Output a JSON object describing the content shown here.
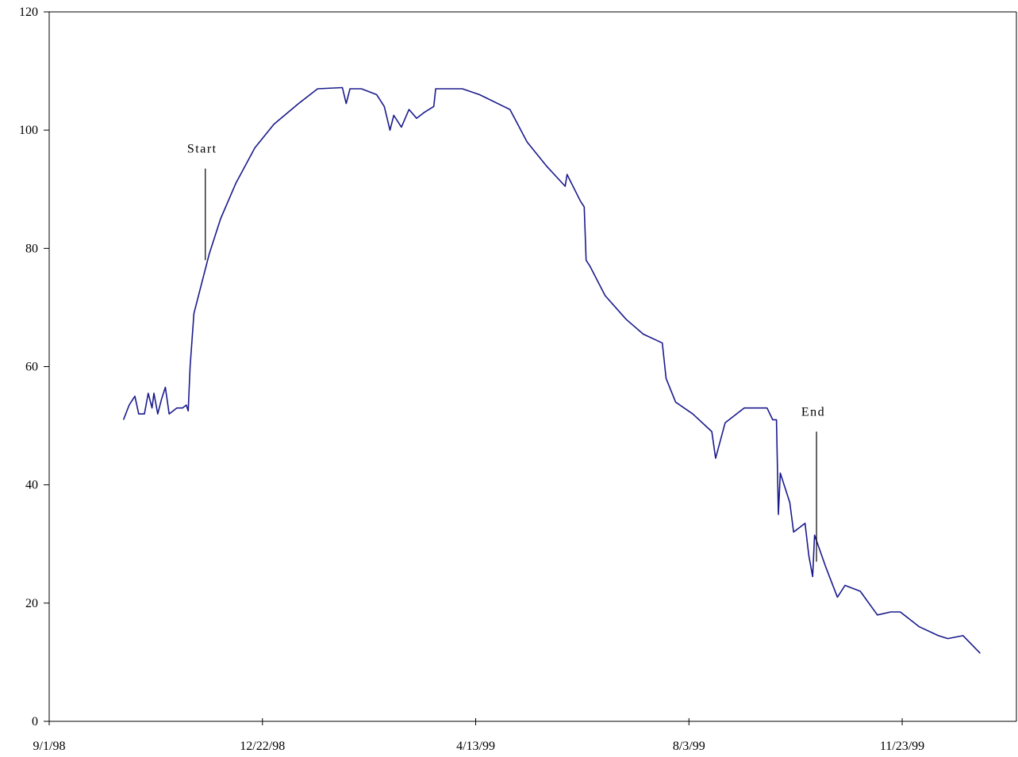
{
  "chart_data": {
    "type": "line",
    "title": "",
    "xlabel": "",
    "ylabel": "",
    "x_axis": {
      "type": "date",
      "range": [
        "1998-09-01",
        "2000-01-22"
      ],
      "ticks": [
        {
          "label": "9/1/98",
          "date": "1998-09-01"
        },
        {
          "label": "12/22/98",
          "date": "1998-12-22"
        },
        {
          "label": "4/13/99",
          "date": "1999-04-13"
        },
        {
          "label": "8/3/99",
          "date": "1999-08-03"
        },
        {
          "label": "11/23/99",
          "date": "1999-11-23"
        }
      ]
    },
    "y_axis": {
      "range": [
        0,
        120
      ],
      "ticks": [
        0,
        20,
        40,
        60,
        80,
        100,
        120
      ]
    },
    "grid": false,
    "legend": "none",
    "colors": {
      "series": "#1a1a8c",
      "axis": "#000000"
    },
    "series": [
      {
        "points": [
          [
            "1998-10-10",
            51
          ],
          [
            "1998-10-13",
            53.5
          ],
          [
            "1998-10-16",
            55
          ],
          [
            "1998-10-18",
            52
          ],
          [
            "1998-10-21",
            52
          ],
          [
            "1998-10-23",
            55.5
          ],
          [
            "1998-10-25",
            53
          ],
          [
            "1998-10-26",
            55.5
          ],
          [
            "1998-10-28",
            52
          ],
          [
            "1998-10-30",
            54.5
          ],
          [
            "1998-11-01",
            56.5
          ],
          [
            "1998-11-03",
            52
          ],
          [
            "1998-11-07",
            53
          ],
          [
            "1998-11-10",
            53
          ],
          [
            "1998-11-12",
            53.5
          ],
          [
            "1998-11-13",
            52.5
          ],
          [
            "1998-11-14",
            60
          ],
          [
            "1998-11-16",
            69
          ],
          [
            "1998-11-20",
            74
          ],
          [
            "1998-11-24",
            79
          ],
          [
            "1998-11-30",
            85
          ],
          [
            "1998-12-08",
            91
          ],
          [
            "1998-12-18",
            97
          ],
          [
            "1998-12-28",
            101
          ],
          [
            "1999-01-10",
            104.5
          ],
          [
            "1999-01-20",
            107
          ],
          [
            "1999-02-02",
            107.2
          ],
          [
            "1999-02-04",
            104.5
          ],
          [
            "1999-02-06",
            107
          ],
          [
            "1999-02-12",
            107
          ],
          [
            "1999-02-20",
            106
          ],
          [
            "1999-02-24",
            104
          ],
          [
            "1999-02-27",
            100
          ],
          [
            "1999-03-01",
            102.5
          ],
          [
            "1999-03-05",
            100.5
          ],
          [
            "1999-03-09",
            103.5
          ],
          [
            "1999-03-13",
            102
          ],
          [
            "1999-03-17",
            103
          ],
          [
            "1999-03-22",
            104
          ],
          [
            "1999-03-23",
            107
          ],
          [
            "1999-04-06",
            107
          ],
          [
            "1999-04-15",
            106
          ],
          [
            "1999-05-01",
            103.5
          ],
          [
            "1999-05-10",
            98
          ],
          [
            "1999-05-20",
            94
          ],
          [
            "1999-05-30",
            90.5
          ],
          [
            "1999-05-31",
            92.5
          ],
          [
            "1999-06-07",
            88
          ],
          [
            "1999-06-09",
            87
          ],
          [
            "1999-06-10",
            78
          ],
          [
            "1999-06-12",
            77
          ],
          [
            "1999-06-20",
            72
          ],
          [
            "1999-07-01",
            68
          ],
          [
            "1999-07-10",
            65.5
          ],
          [
            "1999-07-20",
            64
          ],
          [
            "1999-07-22",
            58
          ],
          [
            "1999-07-27",
            54
          ],
          [
            "1999-08-05",
            52
          ],
          [
            "1999-08-15",
            49
          ],
          [
            "1999-08-17",
            44.5
          ],
          [
            "1999-08-22",
            50.5
          ],
          [
            "1999-09-01",
            53
          ],
          [
            "1999-09-13",
            53
          ],
          [
            "1999-09-16",
            51
          ],
          [
            "1999-09-18",
            51
          ],
          [
            "1999-09-19",
            35
          ],
          [
            "1999-09-20",
            42
          ],
          [
            "1999-09-25",
            37
          ],
          [
            "1999-09-27",
            32
          ],
          [
            "1999-10-01",
            33
          ],
          [
            "1999-10-03",
            33.5
          ],
          [
            "1999-10-05",
            28
          ],
          [
            "1999-10-07",
            24.5
          ],
          [
            "1999-10-08",
            31.5
          ],
          [
            "1999-10-14",
            26
          ],
          [
            "1999-10-20",
            21
          ],
          [
            "1999-10-24",
            23
          ],
          [
            "1999-11-01",
            22
          ],
          [
            "1999-11-10",
            18
          ],
          [
            "1999-11-17",
            18.5
          ],
          [
            "1999-11-22",
            18.5
          ],
          [
            "1999-12-02",
            16
          ],
          [
            "1999-12-12",
            14.5
          ],
          [
            "1999-12-17",
            14
          ],
          [
            "1999-12-25",
            14.5
          ],
          [
            "2000-01-03",
            11.5
          ]
        ]
      }
    ],
    "annotations": [
      {
        "text": "Start",
        "date": "1998-11-22",
        "y_top": 93.5,
        "y_bottom": 78
      },
      {
        "text": "End",
        "date": "1999-10-09",
        "y_top": 49,
        "y_bottom": 27
      }
    ]
  }
}
